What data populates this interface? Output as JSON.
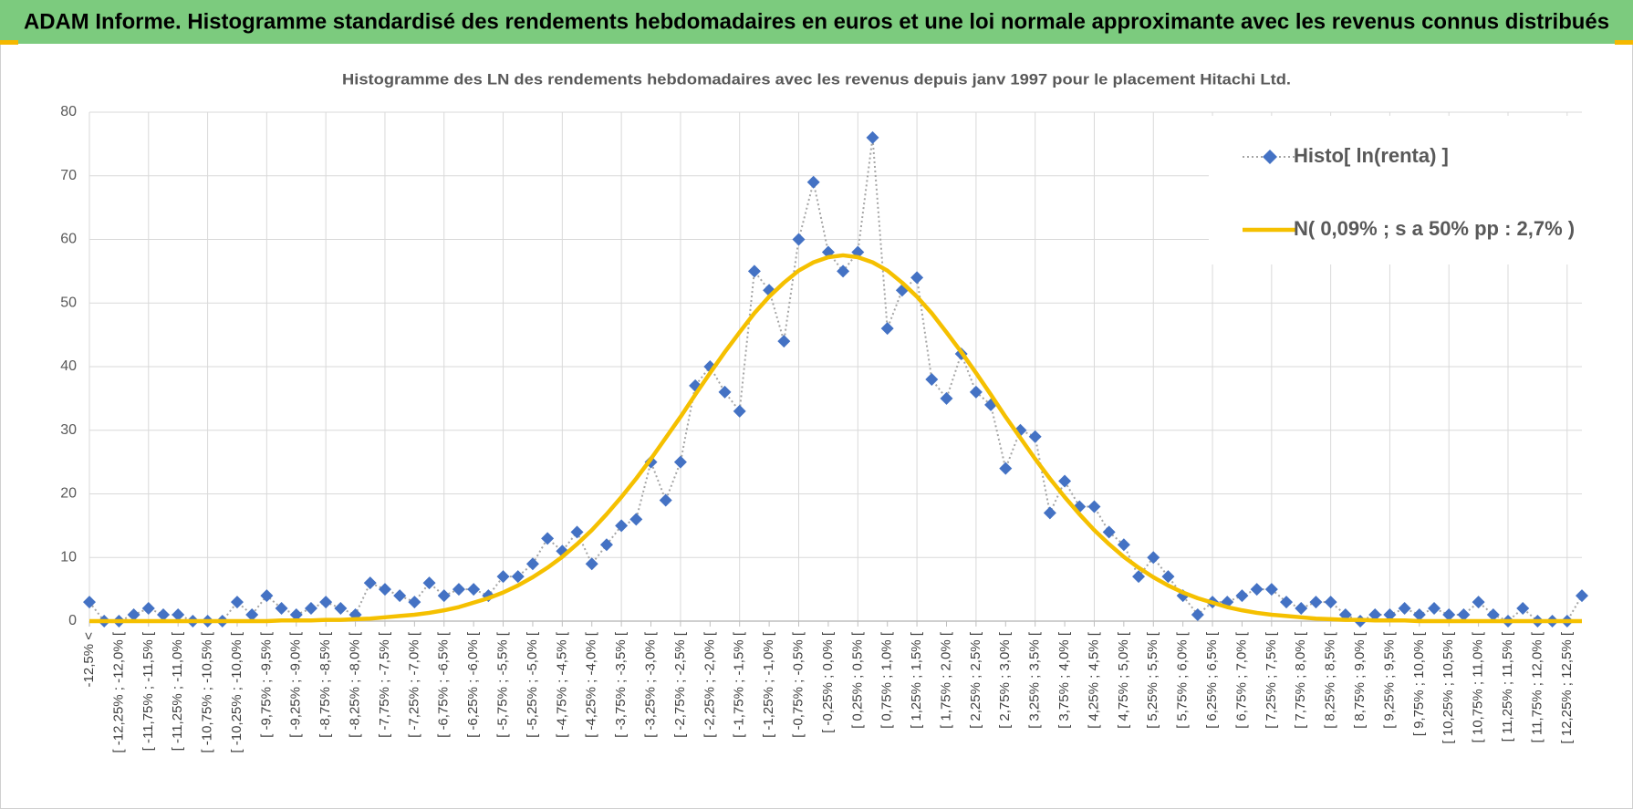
{
  "banner": {
    "title": "ADAM Informe. Histogramme standardisé des rendements hebdomadaires en euros et une loi normale approximante avec les revenus connus distribués"
  },
  "chart_data": {
    "type": "line",
    "title": "Histogramme des LN des rendements hebdomadaires avec les revenus depuis janv 1997 pour le placement Hitachi Ltd.",
    "categories": [
      "-12,5% <",
      null,
      "[ -12,25% ; -12,0% [",
      null,
      "[ -11,75% ; -11,5% [",
      null,
      "[ -11,25% ; -11,0% [",
      null,
      "[ -10,75% ; -10,5% [",
      null,
      "[ -10,25% ; -10,0% [",
      null,
      "[ -9,75% ; -9,5% [",
      null,
      "[ -9,25% ; -9,0% [",
      null,
      "[ -8,75% ; -8,5% [",
      null,
      "[ -8,25% ; -8,0% [",
      null,
      "[ -7,75% ; -7,5% [",
      null,
      "[ -7,25% ; -7,0% [",
      null,
      "[ -6,75% ; -6,5% [",
      null,
      "[ -6,25% ; -6,0% [",
      null,
      "[ -5,75% ; -5,5% [",
      null,
      "[ -5,25% ; -5,0% [",
      null,
      "[ -4,75% ; -4,5% [",
      null,
      "[ -4,25% ; -4,0% [",
      null,
      "[ -3,75% ; -3,5% [",
      null,
      "[ -3,25% ; -3,0% [",
      null,
      "[ -2,75% ; -2,5% [",
      null,
      "[ -2,25% ; -2,0% [",
      null,
      "[ -1,75% ; -1,5% [",
      null,
      "[ -1,25% ; -1,0% [",
      null,
      "[ -0,75% ; -0,5% [",
      null,
      "[ -0,25% ; 0,0% [",
      null,
      "[ 0,25% ; 0,5% [",
      null,
      "[ 0,75% ; 1,0% [",
      null,
      "[ 1,25% ; 1,5% [",
      null,
      "[ 1,75% ; 2,0% [",
      null,
      "[ 2,25% ; 2,5% [",
      null,
      "[ 2,75% ; 3,0% [",
      null,
      "[ 3,25% ; 3,5% [",
      null,
      "[ 3,75% ; 4,0% [",
      null,
      "[ 4,25% ; 4,5% [",
      null,
      "[ 4,75% ; 5,0% [",
      null,
      "[ 5,25% ; 5,5% [",
      null,
      "[ 5,75% ; 6,0% [",
      null,
      "[ 6,25% ; 6,5% [",
      null,
      "[ 6,75% ; 7,0% [",
      null,
      "[ 7,25% ; 7,5% [",
      null,
      "[ 7,75% ; 8,0% [",
      null,
      "[ 8,25% ; 8,5% [",
      null,
      "[ 8,75% ; 9,0% [",
      null,
      "[ 9,25% ; 9,5% [",
      null,
      "[ 9,75% ; 10,0% [",
      null,
      "[ 10,25% ; 10,5% [",
      null,
      "[ 10,75% ; 11,0% [",
      null,
      "[ 11,25% ; 11,5% [",
      null,
      "[ 11,75% ; 12,0% [",
      null,
      "[ 12,25% ; 12,5% [",
      null
    ],
    "series": [
      {
        "name": "Histo[ ln(renta) ]",
        "color": "#4472c4",
        "line_color": "#a5a5a5",
        "values": [
          3,
          0,
          0,
          1,
          2,
          1,
          1,
          0,
          0,
          0,
          3,
          1,
          4,
          2,
          1,
          2,
          3,
          2,
          1,
          6,
          5,
          4,
          3,
          6,
          4,
          5,
          5,
          4,
          7,
          7,
          9,
          13,
          11,
          14,
          9,
          12,
          15,
          16,
          25,
          19,
          25,
          37,
          40,
          36,
          33,
          55,
          52,
          44,
          60,
          69,
          58,
          55,
          58,
          76,
          46,
          52,
          54,
          38,
          35,
          42,
          36,
          34,
          24,
          30,
          29,
          17,
          22,
          18,
          18,
          14,
          12,
          7,
          10,
          7,
          4,
          1,
          3,
          3,
          4,
          5,
          5,
          3,
          2,
          3,
          3,
          1,
          0,
          1,
          1,
          2,
          1,
          2,
          1,
          1,
          3,
          1,
          0,
          2,
          0,
          0,
          0,
          4
        ]
      },
      {
        "name": "N( 0,09% ; s a 50% pp : 2,7% )",
        "color": "#f5c000",
        "values": [
          0,
          0,
          0,
          0,
          0,
          0,
          0,
          0,
          0,
          0,
          0,
          0,
          0,
          0.1,
          0.1,
          0.1,
          0.2,
          0.2,
          0.3,
          0.4,
          0.6,
          0.8,
          1.0,
          1.3,
          1.7,
          2.2,
          2.9,
          3.6,
          4.5,
          5.6,
          6.9,
          8.4,
          10.1,
          12.1,
          14.3,
          16.8,
          19.5,
          22.4,
          25.5,
          28.8,
          32.1,
          35.6,
          39.0,
          42.3,
          45.4,
          48.4,
          51.0,
          53.2,
          55.1,
          56.4,
          57.2,
          57.5,
          57.2,
          56.4,
          55.1,
          53.2,
          51.0,
          48.4,
          45.4,
          42.3,
          39.0,
          35.6,
          32.1,
          28.8,
          25.5,
          22.4,
          19.5,
          16.8,
          14.3,
          12.1,
          10.1,
          8.4,
          6.9,
          5.6,
          4.5,
          3.6,
          2.9,
          2.2,
          1.7,
          1.3,
          1.0,
          0.8,
          0.6,
          0.4,
          0.3,
          0.2,
          0.2,
          0.1,
          0.1,
          0.1,
          0,
          0,
          0,
          0,
          0,
          0,
          0,
          0,
          0,
          0,
          0,
          0
        ]
      }
    ],
    "ylim": [
      0,
      80
    ],
    "yticks": [
      0,
      10,
      20,
      30,
      40,
      50,
      60,
      70,
      80
    ],
    "grid": true,
    "legend": "upper right"
  }
}
